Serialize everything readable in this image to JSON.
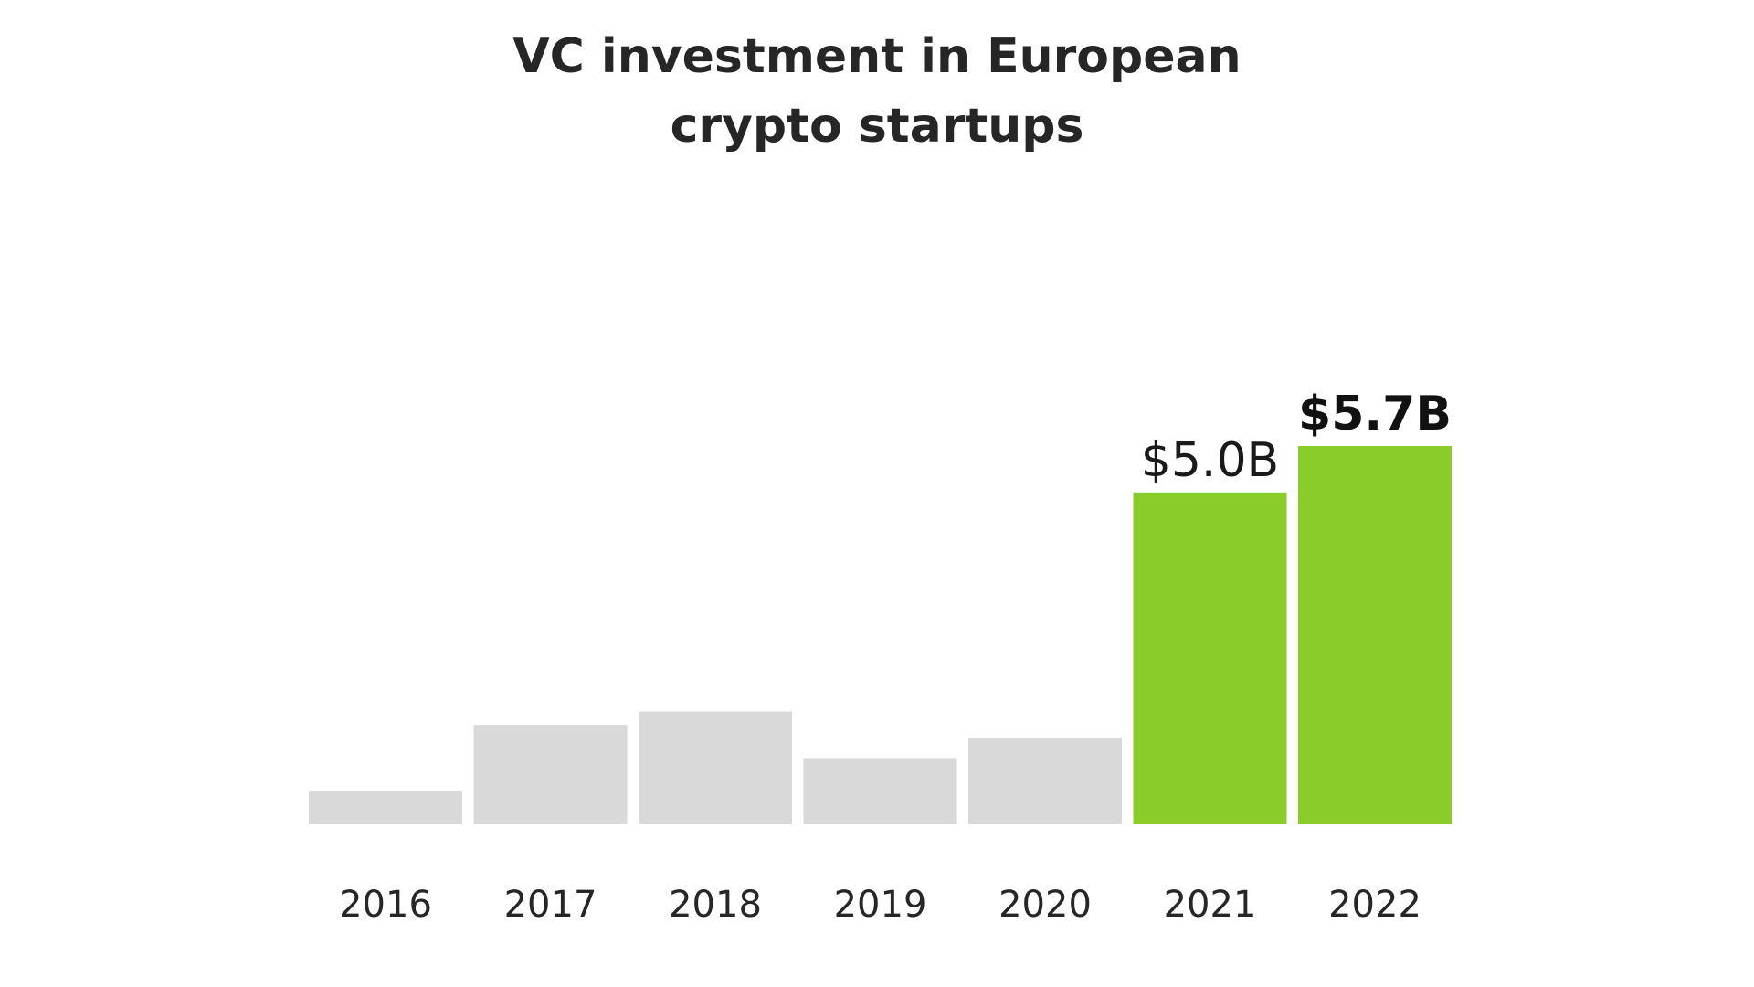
{
  "chart_data": {
    "type": "bar",
    "title_lines": [
      "VC investment in European",
      "crypto startups"
    ],
    "categories": [
      "2016",
      "2017",
      "2018",
      "2019",
      "2020",
      "2021",
      "2022"
    ],
    "values": [
      0.5,
      1.5,
      1.7,
      1.0,
      1.3,
      5.0,
      5.7
    ],
    "unit": "$B",
    "data_labels": [
      "",
      "",
      "",
      "",
      "",
      "$5.0B",
      "$5.7B"
    ],
    "bar_colors": [
      "#d9d9d9",
      "#d9d9d9",
      "#d9d9d9",
      "#d9d9d9",
      "#d9d9d9",
      "#8acd2a",
      "#8acd2a"
    ],
    "emphasized_label_index": 6,
    "ylim": [
      0,
      5.7
    ],
    "grid": false,
    "legend": "none",
    "xlabel": "",
    "ylabel": ""
  }
}
